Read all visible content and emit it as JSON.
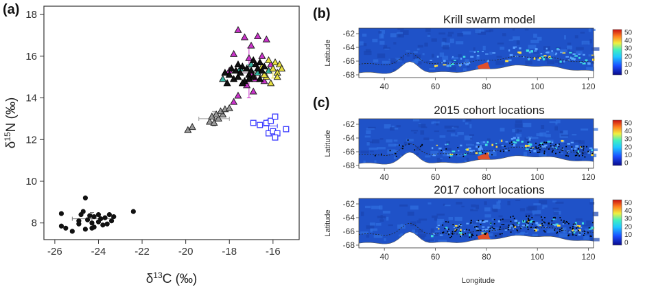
{
  "colors": {
    "black_series": "#111111",
    "grey_series": "#9a9a9a",
    "blue_series": "#3a3aff",
    "magenta_series": "#cc33cc",
    "teal_series": "#33b5a0",
    "yellow_series": "#e8e040",
    "ocean": "#1f52c8",
    "land": "#ffffff"
  },
  "panel_a": {
    "label": "(a)",
    "xlabel_prefix": "δ",
    "xlabel_sup": "13",
    "xlabel_suffix": "C (‰)",
    "ylabel_prefix": "δ",
    "ylabel_sup": "15",
    "ylabel_suffix": "N (‰)"
  },
  "panel_b": {
    "label": "(b)",
    "title": "Krill swarm model"
  },
  "panel_c": {
    "label": "(c)",
    "title_2015": "2015 cohort locations",
    "title_2017": "2017 cohort locations"
  },
  "maps": {
    "ylabel": "Latitude",
    "xlabel": "Longitude",
    "xticks": [
      "40",
      "60",
      "80",
      "100",
      "120"
    ],
    "yticks": [
      "-62",
      "-64",
      "-66",
      "-68"
    ],
    "colorbar_ticks": [
      "50",
      "40",
      "30",
      "20",
      "10",
      "0"
    ]
  },
  "chart_data": [
    {
      "type": "scatter",
      "xlim": [
        -26.5,
        -14.8
      ],
      "ylim": [
        7.2,
        18.4
      ],
      "xticks": [
        -26,
        -24,
        -22,
        -20,
        -18,
        -16
      ],
      "yticks": [
        8,
        10,
        12,
        14,
        16,
        18
      ],
      "series": [
        {
          "marker": "filled-circle",
          "color": "#111111",
          "points": [
            [
              -25.7,
              8.45
            ],
            [
              -25.7,
              7.85
            ],
            [
              -25.5,
              7.75
            ],
            [
              -25.2,
              7.6
            ],
            [
              -24.9,
              7.95
            ],
            [
              -24.8,
              8.4
            ],
            [
              -24.7,
              8.55
            ],
            [
              -24.6,
              9.2
            ],
            [
              -24.5,
              8.15
            ],
            [
              -24.6,
              7.7
            ],
            [
              -24.4,
              8.35
            ],
            [
              -24.3,
              8.0
            ],
            [
              -24.2,
              8.3
            ],
            [
              -24.2,
              7.8
            ],
            [
              -24.0,
              8.4
            ],
            [
              -24.0,
              8.05
            ],
            [
              -23.9,
              8.2
            ],
            [
              -23.8,
              7.9
            ],
            [
              -23.7,
              8.25
            ],
            [
              -23.5,
              8.4
            ],
            [
              -23.6,
              7.95
            ],
            [
              -23.3,
              8.3
            ],
            [
              -23.4,
              8.1
            ],
            [
              -22.4,
              8.55
            ],
            [
              -24.9,
              8.1
            ],
            [
              -24.3,
              7.75
            ]
          ],
          "mean": [
            -24.3,
            8.2
          ],
          "sd": [
            0.9,
            0.3
          ]
        },
        {
          "marker": "triangle",
          "color": "#9a9a9a",
          "points": [
            [
              -19.9,
              12.45
            ],
            [
              -19.7,
              12.6
            ],
            [
              -18.9,
              12.85
            ],
            [
              -18.8,
              13.1
            ],
            [
              -18.7,
              12.8
            ],
            [
              -18.5,
              13.0
            ],
            [
              -18.3,
              13.2
            ],
            [
              -18.4,
              13.35
            ],
            [
              -18.6,
              13.2
            ],
            [
              -18.2,
              13.45
            ],
            [
              -18.0,
              13.5
            ]
          ],
          "mean": [
            -18.7,
            13.0
          ],
          "sd": [
            0.7,
            0.35
          ]
        },
        {
          "marker": "open-square",
          "color": "#3a3aff",
          "points": [
            [
              -16.9,
              12.8
            ],
            [
              -16.6,
              12.7
            ],
            [
              -16.3,
              12.8
            ],
            [
              -16.1,
              12.9
            ],
            [
              -15.9,
              13.1
            ],
            [
              -16.2,
              12.3
            ],
            [
              -16.0,
              12.4
            ],
            [
              -15.8,
              12.3
            ],
            [
              -15.9,
              12.1
            ],
            [
              -15.4,
              12.5
            ]
          ],
          "mean": [
            -16.2,
            12.65
          ],
          "sd": [
            0.4,
            0.3
          ]
        },
        {
          "marker": "triangle",
          "color": "#cc33cc",
          "points": [
            [
              -17.6,
              17.25
            ],
            [
              -17.3,
              16.9
            ],
            [
              -16.7,
              16.95
            ],
            [
              -16.3,
              16.8
            ],
            [
              -17.0,
              16.5
            ],
            [
              -16.5,
              16.0
            ],
            [
              -17.8,
              16.1
            ],
            [
              -17.1,
              15.9
            ],
            [
              -16.6,
              15.3
            ],
            [
              -16.8,
              14.9
            ],
            [
              -17.2,
              14.6
            ],
            [
              -17.6,
              14.1
            ],
            [
              -17.8,
              13.8
            ],
            [
              -16.4,
              14.8
            ],
            [
              -16.1,
              15.6
            ],
            [
              -17.0,
              15.1
            ],
            [
              -18.0,
              15.3
            ],
            [
              -16.9,
              14.3
            ]
          ],
          "mean": [
            -17.1,
            15.2
          ],
          "sd": [
            0.5,
            1.2
          ]
        },
        {
          "marker": "triangle",
          "color": "#33b5a0",
          "points": [
            [
              -18.3,
              14.9
            ],
            [
              -17.5,
              15.4
            ],
            [
              -17.0,
              15.6
            ],
            [
              -16.7,
              15.2
            ],
            [
              -16.2,
              15.3
            ]
          ],
          "mean": [
            -17.1,
            15.3
          ],
          "sd": [
            0.4,
            0.3
          ]
        },
        {
          "marker": "triangle",
          "color": "#e8e040",
          "points": [
            [
              -16.5,
              15.5
            ],
            [
              -16.3,
              15.0
            ],
            [
              -16.2,
              15.8
            ],
            [
              -16.0,
              15.4
            ],
            [
              -15.9,
              15.7
            ],
            [
              -15.8,
              15.2
            ],
            [
              -15.7,
              15.6
            ],
            [
              -15.6,
              15.4
            ],
            [
              -16.1,
              14.7
            ],
            [
              -16.4,
              15.1
            ],
            [
              -15.8,
              15.0
            ]
          ],
          "mean": [
            -16.0,
            15.3
          ],
          "sd": [
            0.3,
            0.35
          ]
        },
        {
          "marker": "triangle",
          "color": "#111111",
          "points": [
            [
              -18.2,
              15.2
            ],
            [
              -18.0,
              15.1
            ],
            [
              -17.9,
              15.4
            ],
            [
              -17.8,
              14.9
            ],
            [
              -17.7,
              15.3
            ],
            [
              -17.6,
              15.0
            ],
            [
              -17.5,
              15.2
            ],
            [
              -17.4,
              15.5
            ],
            [
              -17.3,
              14.8
            ],
            [
              -17.2,
              15.4
            ],
            [
              -17.1,
              15.1
            ],
            [
              -17.0,
              15.3
            ],
            [
              -16.9,
              15.0
            ],
            [
              -16.8,
              15.6
            ],
            [
              -16.7,
              15.4
            ],
            [
              -16.6,
              14.9
            ],
            [
              -16.5,
              15.3
            ],
            [
              -16.4,
              15.5
            ],
            [
              -16.9,
              15.8
            ],
            [
              -17.6,
              15.6
            ],
            [
              -17.1,
              14.9
            ],
            [
              -16.6,
              15.7
            ],
            [
              -18.1,
              14.7
            ],
            [
              -17.4,
              14.7
            ]
          ],
          "mean": [
            -17.1,
            15.2
          ],
          "sd": [
            0.5,
            0.3
          ]
        }
      ]
    }
  ]
}
